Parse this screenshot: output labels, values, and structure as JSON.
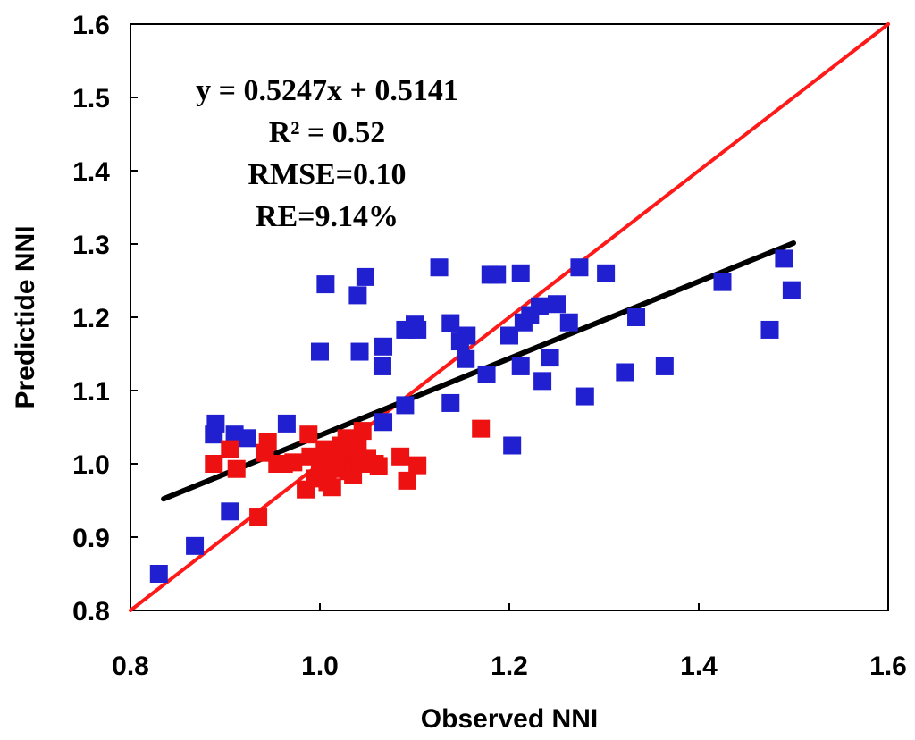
{
  "chart_data": {
    "type": "scatter",
    "title": "",
    "xlabel": "Observed NNI",
    "ylabel": "Predictide NNI",
    "xlim": [
      0.8,
      1.6
    ],
    "ylim": [
      0.8,
      1.6
    ],
    "xticks": [
      "0.8",
      "1.0",
      "1.2",
      "1.4",
      "1.6"
    ],
    "yticks": [
      "0.8",
      "0.9",
      "1.0",
      "1.1",
      "1.2",
      "1.3",
      "1.4",
      "1.5",
      "1.6"
    ],
    "grid": false,
    "annotations": [
      "y = 0.5247x + 0.5141",
      "R² = 0.52",
      "RMSE=0.10",
      "RE=9.14%"
    ],
    "lines": [
      {
        "name": "1:1 line",
        "color": "#ff1a1a",
        "points": [
          [
            0.8,
            0.8
          ],
          [
            1.6,
            1.6
          ]
        ]
      },
      {
        "name": "fit line",
        "color": "#000000",
        "points": [
          [
            0.835,
            0.9522
          ],
          [
            1.5,
            1.3012
          ]
        ]
      }
    ],
    "series": [
      {
        "name": "blue",
        "color": "#2020d0",
        "marker": "square",
        "points": [
          [
            0.83,
            0.85
          ],
          [
            0.868,
            0.888
          ],
          [
            0.89,
            1.055
          ],
          [
            0.888,
            1.04
          ],
          [
            0.905,
            0.935
          ],
          [
            0.91,
            1.04
          ],
          [
            0.923,
            1.035
          ],
          [
            0.965,
            1.055
          ],
          [
            1.0,
            1.153
          ],
          [
            1.006,
            1.245
          ],
          [
            1.04,
            1.23
          ],
          [
            1.048,
            1.255
          ],
          [
            1.042,
            1.153
          ],
          [
            1.067,
            1.16
          ],
          [
            1.066,
            1.133
          ],
          [
            1.067,
            1.057
          ],
          [
            1.09,
            1.183
          ],
          [
            1.09,
            1.08
          ],
          [
            1.1,
            1.19
          ],
          [
            1.103,
            1.183
          ],
          [
            1.126,
            1.268
          ],
          [
            1.138,
            1.192
          ],
          [
            1.138,
            1.083
          ],
          [
            1.148,
            1.167
          ],
          [
            1.155,
            1.175
          ],
          [
            1.154,
            1.143
          ],
          [
            1.176,
            1.122
          ],
          [
            1.18,
            1.258
          ],
          [
            1.187,
            1.258
          ],
          [
            1.2,
            1.175
          ],
          [
            1.203,
            1.025
          ],
          [
            1.212,
            1.26
          ],
          [
            1.212,
            1.133
          ],
          [
            1.215,
            1.193
          ],
          [
            1.222,
            1.203
          ],
          [
            1.232,
            1.215
          ],
          [
            1.235,
            1.113
          ],
          [
            1.243,
            1.145
          ],
          [
            1.25,
            1.218
          ],
          [
            1.263,
            1.193
          ],
          [
            1.274,
            1.268
          ],
          [
            1.28,
            1.092
          ],
          [
            1.302,
            1.26
          ],
          [
            1.322,
            1.125
          ],
          [
            1.334,
            1.2
          ],
          [
            1.364,
            1.133
          ],
          [
            1.425,
            1.248
          ],
          [
            1.475,
            1.183
          ],
          [
            1.49,
            1.28
          ],
          [
            1.498,
            1.237
          ]
        ]
      },
      {
        "name": "red",
        "color": "#ee1111",
        "marker": "square",
        "points": [
          [
            0.888,
            1.0
          ],
          [
            0.905,
            1.02
          ],
          [
            0.912,
            0.993
          ],
          [
            0.935,
            0.928
          ],
          [
            0.942,
            1.015
          ],
          [
            0.945,
            1.03
          ],
          [
            0.955,
            1.0
          ],
          [
            0.962,
            1.0
          ],
          [
            0.972,
            1.002
          ],
          [
            0.985,
            0.965
          ],
          [
            0.988,
            1.04
          ],
          [
            0.99,
            1.01
          ],
          [
            0.995,
            0.98
          ],
          [
            1.0,
            1.003
          ],
          [
            1.003,
            0.99
          ],
          [
            1.005,
            1.02
          ],
          [
            1.008,
            0.975
          ],
          [
            1.01,
            1.0
          ],
          [
            1.013,
            0.968
          ],
          [
            1.015,
            1.01
          ],
          [
            1.02,
            0.993
          ],
          [
            1.022,
            1.025
          ],
          [
            1.025,
            1.005
          ],
          [
            1.028,
            1.035
          ],
          [
            1.03,
            0.99
          ],
          [
            1.035,
            0.985
          ],
          [
            1.038,
            1.018
          ],
          [
            1.04,
            1.03
          ],
          [
            1.043,
            1.0
          ],
          [
            1.045,
            1.045
          ],
          [
            1.05,
            1.008
          ],
          [
            1.058,
            1.0
          ],
          [
            1.062,
            0.997
          ],
          [
            1.085,
            1.01
          ],
          [
            1.092,
            0.977
          ],
          [
            1.103,
            0.998
          ],
          [
            1.17,
            1.048
          ]
        ]
      }
    ]
  }
}
